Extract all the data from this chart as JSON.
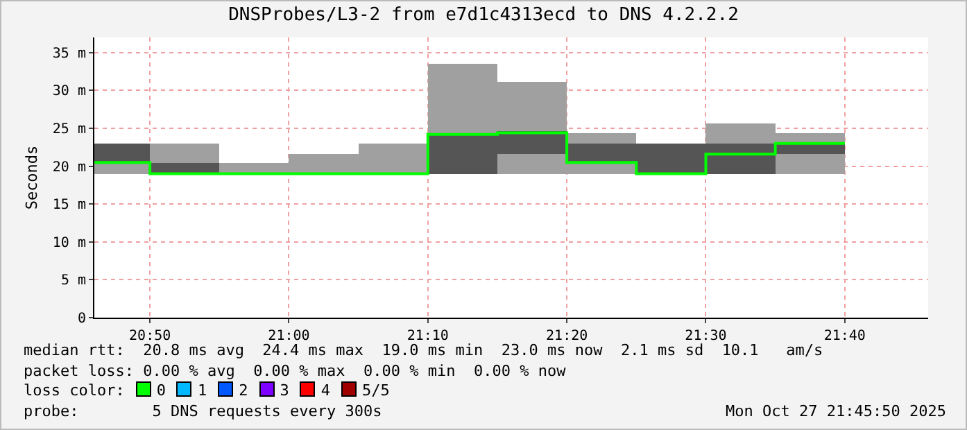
{
  "chart_data": {
    "type": "bar",
    "title": "DNSProbes/L3-2 from e7d1c4313ecd to DNS 4.2.2.2",
    "ylabel": "Seconds",
    "x": [
      "2025-10-27T20:48",
      "2025-10-27T20:52:30",
      "2025-10-27T20:57:30",
      "2025-10-27T21:02:30",
      "2025-10-27T21:07:30",
      "2025-10-27T21:12:30",
      "2025-10-27T21:17:30",
      "2025-10-27T21:22:30",
      "2025-10-27T21:27:30",
      "2025-10-27T21:32:30",
      "2025-10-27T21:37:30"
    ],
    "series": [
      {
        "color": "#a0a0a0",
        "base": [
          19,
          19,
          19,
          19,
          19,
          19,
          19,
          19,
          null,
          19,
          19
        ],
        "values": [
          1.4,
          4.0,
          1.4,
          2.6,
          4.0,
          14.5,
          12.1,
          5.4,
          null,
          6.6,
          5.4
        ]
      },
      {
        "color": "#555555",
        "base": [
          20.4,
          19,
          null,
          null,
          null,
          19,
          21.6,
          20.4,
          19,
          19,
          21.6
        ],
        "values": [
          2.6,
          1.4,
          null,
          null,
          null,
          5.4,
          3.0,
          2.6,
          4.0,
          4.0,
          1.4
        ]
      },
      {
        "type": "step",
        "color": "#00ff00",
        "x": [
          "2025-10-27T20:46",
          "2025-10-27T20:50",
          "2025-10-27T20:55",
          "2025-10-27T21:00",
          "2025-10-27T21:05",
          "2025-10-27T21:10",
          "2025-10-27T21:15",
          "2025-10-27T21:20",
          "2025-10-27T21:25",
          "2025-10-27T21:30",
          "2025-10-27T21:35",
          "2025-10-27T21:40"
        ],
        "values": [
          20.5,
          19.0,
          19.0,
          19.0,
          19.0,
          24.2,
          24.4,
          20.5,
          19.0,
          21.6,
          23.0,
          23.0
        ]
      }
    ],
    "xlim": [
      "2025-10-27T20:46",
      "2025-10-27T21:46"
    ],
    "xticks": [
      {
        "value": "2025-10-27T20:50",
        "label": "20:50"
      },
      {
        "value": "2025-10-27T21:00",
        "label": "21:00"
      },
      {
        "value": "2025-10-27T21:10",
        "label": "21:10"
      },
      {
        "value": "2025-10-27T21:20",
        "label": "21:20"
      },
      {
        "value": "2025-10-27T21:30",
        "label": "21:30"
      },
      {
        "value": "2025-10-27T21:40",
        "label": "21:40"
      }
    ],
    "ylim": [
      0,
      37
    ],
    "yticks": [
      0,
      {
        "value": 5,
        "label": "5 m"
      },
      {
        "value": 10,
        "label": "10 m"
      },
      {
        "value": 15,
        "label": "15 m"
      },
      {
        "value": 20,
        "label": "20 m"
      },
      {
        "value": 25,
        "label": "25 m"
      },
      {
        "value": 30,
        "label": "30 m"
      },
      {
        "value": 35,
        "label": "35 m"
      }
    ],
    "grid": true,
    "annotations": [
      "median rtt:  20.8 ms avg  24.4 ms max  19.0 ms min  23.0 ms now  2.1 ms sd  10.1   am/s",
      "packet loss: 0.00 % avg  0.00 % max  0.00 % min  0.00 % now",
      "loss color:",
      "0",
      "1",
      "2",
      "3",
      "4",
      "5/5",
      "probe:        5 DNS requests every 300s",
      "Mon Oct 27 21:45:50 2025"
    ]
  }
}
